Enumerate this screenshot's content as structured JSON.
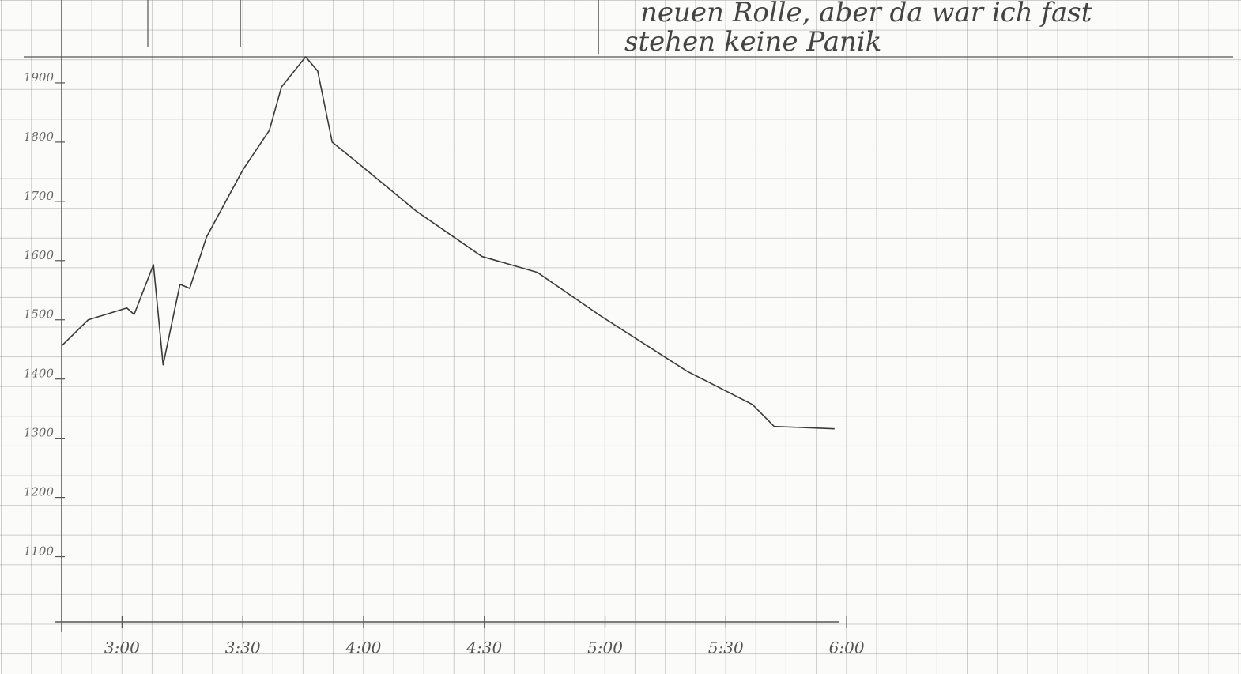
{
  "chart_data": {
    "type": "line",
    "annotations": [
      "neuen Rolle, aber da war ich fast",
      "stehen keine Panik"
    ],
    "x": [
      2.75,
      2.86,
      3.02,
      3.05,
      3.13,
      3.17,
      3.24,
      3.28,
      3.35,
      3.5,
      3.61,
      3.66,
      3.76,
      3.81,
      3.87,
      3.97,
      4.22,
      4.49,
      4.72,
      4.98,
      5.34,
      5.61,
      5.7,
      5.95
    ],
    "series": [
      {
        "color": "#3a3a3a",
        "values": [
          1456,
          1500,
          1520,
          1509,
          1593,
          1424,
          1560,
          1553,
          1640,
          1753,
          1820,
          1893,
          1944,
          1920,
          1800,
          1767,
          1683,
          1607,
          1580,
          1507,
          1413,
          1357,
          1320,
          1316
        ]
      }
    ],
    "xlim": [
      2.75,
      7.6
    ],
    "xticks": [
      {
        "value": 3,
        "label": "3:00"
      },
      {
        "value": 3.5,
        "label": "3:30"
      },
      {
        "value": 4,
        "label": "4:00"
      },
      {
        "value": 4.5,
        "label": "4:30"
      },
      {
        "value": 5,
        "label": "5:00"
      },
      {
        "value": 5.5,
        "label": "5:30"
      },
      {
        "value": 6,
        "label": "6:00"
      }
    ],
    "ylim": [
      990,
      2040
    ],
    "yticks": [
      1100,
      1200,
      1300,
      1400,
      1500,
      1600,
      1700,
      1800,
      1900
    ]
  }
}
